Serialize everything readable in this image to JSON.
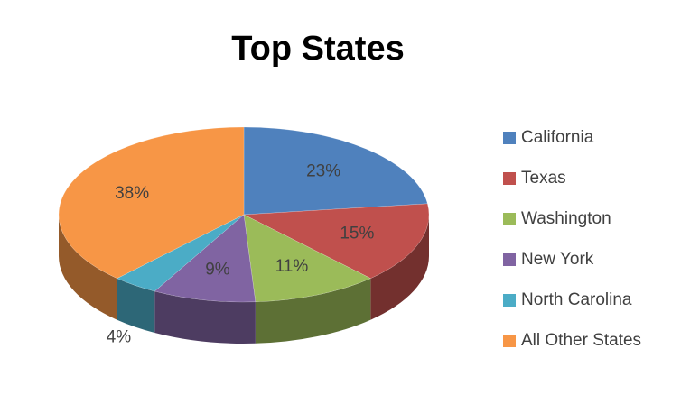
{
  "chart_data": {
    "type": "pie",
    "title": "Top States",
    "categories": [
      "California",
      "Texas",
      "Washington",
      "New York",
      "North Carolina",
      "All Other States"
    ],
    "values": [
      23,
      15,
      11,
      9,
      4,
      38
    ],
    "value_labels": [
      "23%",
      "15%",
      "11%",
      "9%",
      "4%",
      "38%"
    ],
    "colors": [
      "#4f81bd",
      "#c0504d",
      "#9bbb59",
      "#8064a2",
      "#4bacc6",
      "#f79646"
    ],
    "legend": "right"
  }
}
